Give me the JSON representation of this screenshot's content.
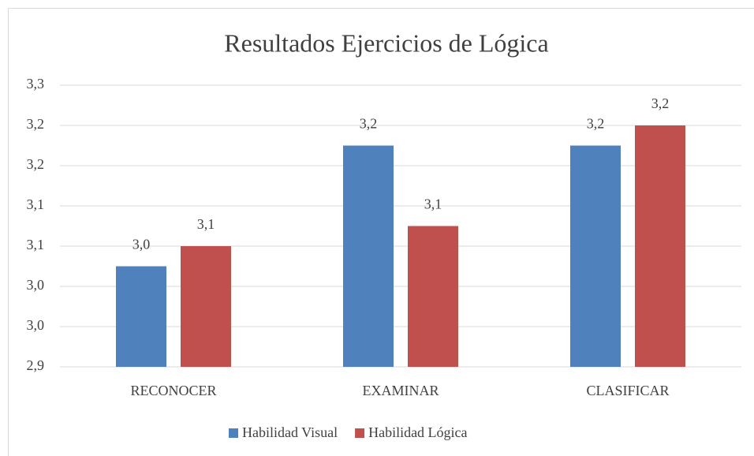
{
  "chart_data": {
    "type": "bar",
    "title": "Resultados Ejercicios de Lógica",
    "categories": [
      "RECONOCER",
      "EXAMINAR",
      "CLASIFICAR"
    ],
    "series": [
      {
        "name": "Habilidad Visual",
        "color": "#4f81bd",
        "values": [
          3.025,
          3.175,
          3.175
        ],
        "value_labels": [
          "3,0",
          "3,2",
          "3,2"
        ]
      },
      {
        "name": "Habilidad Lógica",
        "color": "#c0504d",
        "values": [
          3.05,
          3.075,
          3.2
        ],
        "value_labels": [
          "3,1",
          "3,1",
          "3,2"
        ]
      }
    ],
    "ylim": [
      2.9,
      3.25
    ],
    "yticks": [
      {
        "value": 2.9,
        "label": "2,9"
      },
      {
        "value": 2.95,
        "label": "3,0"
      },
      {
        "value": 3.0,
        "label": "3,0"
      },
      {
        "value": 3.05,
        "label": "3,1"
      },
      {
        "value": 3.1,
        "label": "3,1"
      },
      {
        "value": 3.15,
        "label": "3,2"
      },
      {
        "value": 3.2,
        "label": "3,2"
      },
      {
        "value": 3.25,
        "label": "3,3"
      }
    ],
    "grid": true,
    "legend": "bottom"
  }
}
